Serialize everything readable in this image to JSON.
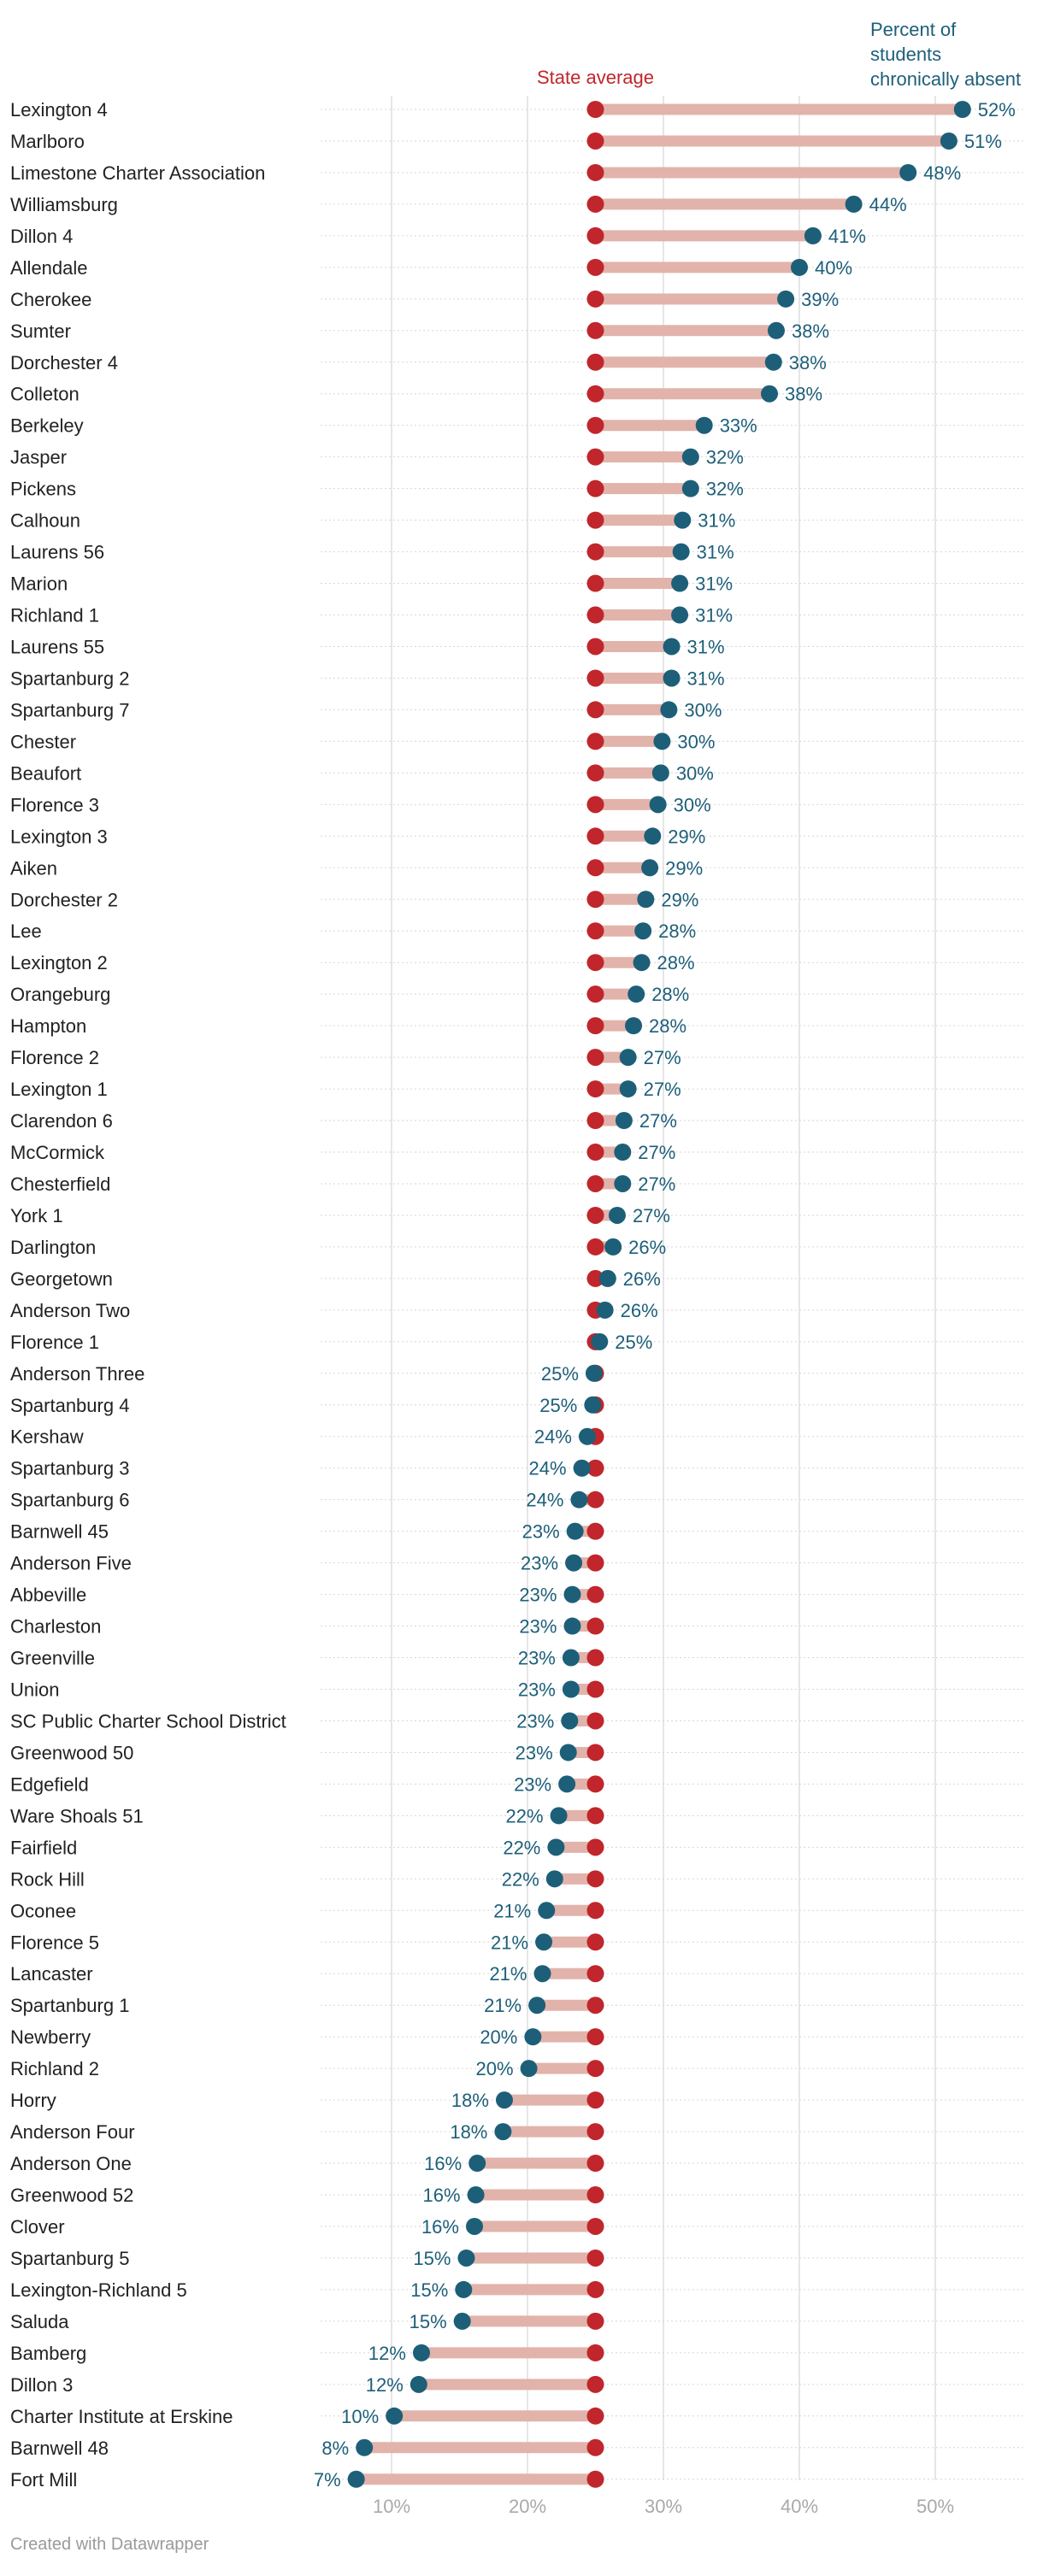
{
  "chart_data": {
    "type": "dumbbell",
    "legend": {
      "state_average": "State average",
      "district": [
        "Percent of",
        "students",
        "chronically absent"
      ]
    },
    "state_average": 25,
    "xlim": [
      0,
      56
    ],
    "x_ticks": [
      10,
      20,
      30,
      40,
      50
    ],
    "x_tick_labels": [
      "10%",
      "20%",
      "30%",
      "40%",
      "50%"
    ],
    "colors": {
      "average_dot": "#c0262b",
      "district_dot": "#1d5f79",
      "bar": "#e2b3ab",
      "grid": "#e6e6e6"
    },
    "rows": [
      {
        "name": "Lexington 4",
        "value": 52,
        "label": "52%"
      },
      {
        "name": "Marlboro",
        "value": 51,
        "label": "51%"
      },
      {
        "name": "Limestone Charter Association",
        "value": 48,
        "label": "48%"
      },
      {
        "name": "Williamsburg",
        "value": 44,
        "label": "44%"
      },
      {
        "name": "Dillon 4",
        "value": 41,
        "label": "41%"
      },
      {
        "name": "Allendale",
        "value": 40,
        "label": "40%"
      },
      {
        "name": "Cherokee",
        "value": 39,
        "label": "39%"
      },
      {
        "name": "Sumter",
        "value": 38.3,
        "label": "38%"
      },
      {
        "name": "Dorchester 4",
        "value": 38.1,
        "label": "38%"
      },
      {
        "name": "Colleton",
        "value": 37.8,
        "label": "38%"
      },
      {
        "name": "Berkeley",
        "value": 33,
        "label": "33%"
      },
      {
        "name": "Jasper",
        "value": 32,
        "label": "32%"
      },
      {
        "name": "Pickens",
        "value": 32,
        "label": "32%"
      },
      {
        "name": "Calhoun",
        "value": 31.4,
        "label": "31%"
      },
      {
        "name": "Laurens 56",
        "value": 31.3,
        "label": "31%"
      },
      {
        "name": "Marion",
        "value": 31.2,
        "label": "31%"
      },
      {
        "name": "Richland 1",
        "value": 31.2,
        "label": "31%"
      },
      {
        "name": "Laurens 55",
        "value": 30.6,
        "label": "31%"
      },
      {
        "name": "Spartanburg 2",
        "value": 30.6,
        "label": "31%"
      },
      {
        "name": "Spartanburg 7",
        "value": 30.4,
        "label": "30%"
      },
      {
        "name": "Chester",
        "value": 29.9,
        "label": "30%"
      },
      {
        "name": "Beaufort",
        "value": 29.8,
        "label": "30%"
      },
      {
        "name": "Florence 3",
        "value": 29.6,
        "label": "30%"
      },
      {
        "name": "Lexington 3",
        "value": 29.2,
        "label": "29%"
      },
      {
        "name": "Aiken",
        "value": 29,
        "label": "29%"
      },
      {
        "name": "Dorchester 2",
        "value": 28.7,
        "label": "29%"
      },
      {
        "name": "Lee",
        "value": 28.5,
        "label": "28%"
      },
      {
        "name": "Lexington 2",
        "value": 28.4,
        "label": "28%"
      },
      {
        "name": "Orangeburg",
        "value": 28,
        "label": "28%"
      },
      {
        "name": "Hampton",
        "value": 27.8,
        "label": "28%"
      },
      {
        "name": "Florence 2",
        "value": 27.4,
        "label": "27%"
      },
      {
        "name": "Lexington 1",
        "value": 27.4,
        "label": "27%"
      },
      {
        "name": "Clarendon 6",
        "value": 27.1,
        "label": "27%"
      },
      {
        "name": "McCormick",
        "value": 27,
        "label": "27%"
      },
      {
        "name": "Chesterfield",
        "value": 27,
        "label": "27%"
      },
      {
        "name": "York 1",
        "value": 26.6,
        "label": "27%"
      },
      {
        "name": "Darlington",
        "value": 26.3,
        "label": "26%"
      },
      {
        "name": "Georgetown",
        "value": 25.9,
        "label": "26%"
      },
      {
        "name": "Anderson Two",
        "value": 25.7,
        "label": "26%"
      },
      {
        "name": "Florence 1",
        "value": 25.3,
        "label": "25%"
      },
      {
        "name": "Anderson Three",
        "value": 24.9,
        "label": "25%"
      },
      {
        "name": "Spartanburg 4",
        "value": 24.8,
        "label": "25%"
      },
      {
        "name": "Kershaw",
        "value": 24.4,
        "label": "24%"
      },
      {
        "name": "Spartanburg 3",
        "value": 24,
        "label": "24%"
      },
      {
        "name": "Spartanburg 6",
        "value": 23.8,
        "label": "24%"
      },
      {
        "name": "Barnwell 45",
        "value": 23.5,
        "label": "23%"
      },
      {
        "name": "Anderson Five",
        "value": 23.4,
        "label": "23%"
      },
      {
        "name": "Abbeville",
        "value": 23.3,
        "label": "23%"
      },
      {
        "name": "Charleston",
        "value": 23.3,
        "label": "23%"
      },
      {
        "name": "Greenville",
        "value": 23.2,
        "label": "23%"
      },
      {
        "name": "Union",
        "value": 23.2,
        "label": "23%"
      },
      {
        "name": "SC Public Charter School District",
        "value": 23.1,
        "label": "23%"
      },
      {
        "name": "Greenwood 50",
        "value": 23,
        "label": "23%"
      },
      {
        "name": "Edgefield",
        "value": 22.9,
        "label": "23%"
      },
      {
        "name": "Ware Shoals 51",
        "value": 22.3,
        "label": "22%"
      },
      {
        "name": "Fairfield",
        "value": 22.1,
        "label": "22%"
      },
      {
        "name": "Rock Hill",
        "value": 22,
        "label": "22%"
      },
      {
        "name": "Oconee",
        "value": 21.4,
        "label": "21%"
      },
      {
        "name": "Florence 5",
        "value": 21.2,
        "label": "21%"
      },
      {
        "name": "Lancaster",
        "value": 21.1,
        "label": "21%"
      },
      {
        "name": "Spartanburg 1",
        "value": 20.7,
        "label": "21%"
      },
      {
        "name": "Newberry",
        "value": 20.4,
        "label": "20%"
      },
      {
        "name": "Richland 2",
        "value": 20.1,
        "label": "20%"
      },
      {
        "name": "Horry",
        "value": 18.3,
        "label": "18%"
      },
      {
        "name": "Anderson Four",
        "value": 18.2,
        "label": "18%"
      },
      {
        "name": "Anderson One",
        "value": 16.3,
        "label": "16%"
      },
      {
        "name": "Greenwood 52",
        "value": 16.2,
        "label": "16%"
      },
      {
        "name": "Clover",
        "value": 16.1,
        "label": "16%"
      },
      {
        "name": "Spartanburg 5",
        "value": 15.5,
        "label": "15%"
      },
      {
        "name": "Lexington-Richland 5",
        "value": 15.3,
        "label": "15%"
      },
      {
        "name": "Saluda",
        "value": 15.2,
        "label": "15%"
      },
      {
        "name": "Bamberg",
        "value": 12.2,
        "label": "12%"
      },
      {
        "name": "Dillon 3",
        "value": 12,
        "label": "12%"
      },
      {
        "name": "Charter Institute at Erskine",
        "value": 10.2,
        "label": "10%"
      },
      {
        "name": "Barnwell 48",
        "value": 8,
        "label": "8%"
      },
      {
        "name": "Fort Mill",
        "value": 7.4,
        "label": "7%"
      }
    ]
  },
  "footer": {
    "credit": "Created with Datawrapper"
  }
}
